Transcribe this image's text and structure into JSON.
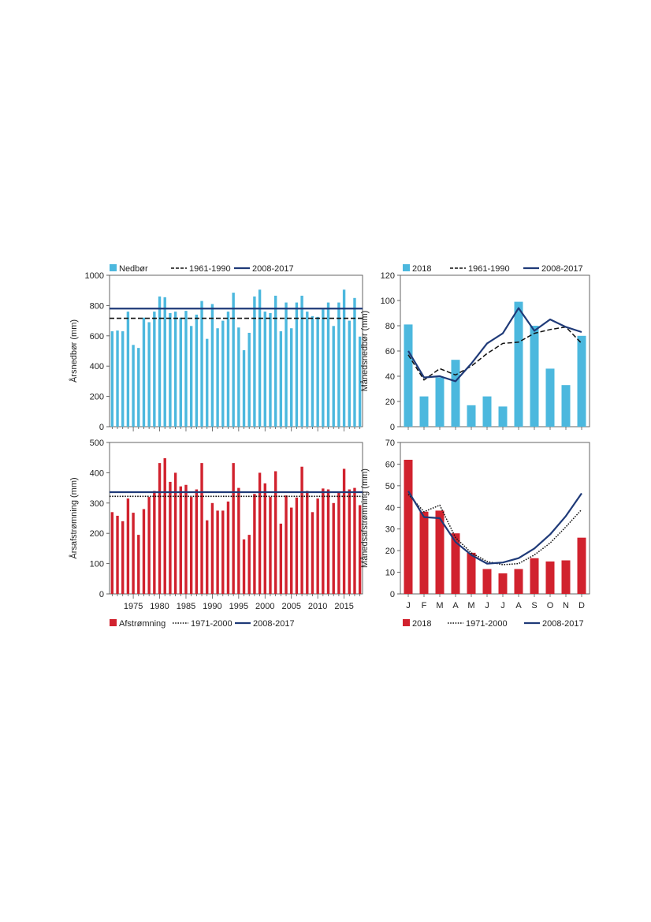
{
  "colors": {
    "precip_bar": "#4cb8de",
    "runoff_bar": "#d1222e",
    "line_recent": "#1f3a78",
    "line_normal": "#111111",
    "frame": "#555555"
  },
  "legends": {
    "precip_annual": [
      {
        "kind": "bar",
        "label": "Nedbør",
        "color_key": "precip_bar"
      },
      {
        "kind": "dashed",
        "label": "1961-1990"
      },
      {
        "kind": "solid",
        "label": "2008-2017"
      }
    ],
    "precip_monthly": [
      {
        "kind": "bar",
        "label": "2018",
        "color_key": "precip_bar"
      },
      {
        "kind": "dashed",
        "label": "1961-1990"
      },
      {
        "kind": "solid",
        "label": "2008-2017"
      }
    ],
    "runoff_annual": [
      {
        "kind": "bar",
        "label": "Afstrømning",
        "color_key": "runoff_bar"
      },
      {
        "kind": "dotted",
        "label": "1971-2000"
      },
      {
        "kind": "solid",
        "label": "2008-2017"
      }
    ],
    "runoff_monthly": [
      {
        "kind": "bar",
        "label": "2018",
        "color_key": "runoff_bar"
      },
      {
        "kind": "dotted",
        "label": "1971-2000"
      },
      {
        "kind": "solid",
        "label": "2008-2017"
      }
    ]
  },
  "chart_data": [
    {
      "id": "precip_annual",
      "type": "bar",
      "ylabel": "Årsnedbør (mm)",
      "ylim": [
        0,
        1000
      ],
      "yticks": [
        0,
        200,
        400,
        600,
        800,
        1000
      ],
      "x_tick_labels_shown": false,
      "categories": [
        1971,
        1972,
        1973,
        1974,
        1975,
        1976,
        1977,
        1978,
        1979,
        1980,
        1981,
        1982,
        1983,
        1984,
        1985,
        1986,
        1987,
        1988,
        1989,
        1990,
        1991,
        1992,
        1993,
        1994,
        1995,
        1996,
        1997,
        1998,
        1999,
        2000,
        2001,
        2002,
        2003,
        2004,
        2005,
        2006,
        2007,
        2008,
        2009,
        2010,
        2011,
        2012,
        2013,
        2014,
        2015,
        2016,
        2017,
        2018
      ],
      "values": [
        630,
        635,
        630,
        760,
        540,
        520,
        720,
        690,
        760,
        860,
        855,
        750,
        760,
        720,
        765,
        665,
        740,
        830,
        580,
        810,
        650,
        700,
        760,
        885,
        655,
        505,
        620,
        860,
        905,
        760,
        750,
        865,
        630,
        820,
        650,
        820,
        865,
        760,
        730,
        725,
        775,
        820,
        665,
        820,
        905,
        700,
        850,
        595
      ],
      "reference_lines": [
        {
          "label": "1961-1990",
          "style": "dashed",
          "value": 716
        },
        {
          "label": "2008-2017",
          "style": "solid",
          "value": 780
        }
      ]
    },
    {
      "id": "precip_monthly",
      "type": "bar",
      "ylabel": "Månedsnedbør (mm)",
      "ylim": [
        0,
        120
      ],
      "yticks": [
        0,
        20,
        40,
        60,
        80,
        100,
        120
      ],
      "x_tick_labels_shown": false,
      "categories": [
        "J",
        "F",
        "M",
        "A",
        "M",
        "J",
        "J",
        "A",
        "S",
        "O",
        "N",
        "D"
      ],
      "series": [
        {
          "name": "2018",
          "style": "bar",
          "values": [
            81,
            24,
            39,
            53,
            17,
            24,
            16,
            99,
            80,
            46,
            33,
            72
          ]
        },
        {
          "name": "1961-1990",
          "style": "dashed",
          "values": [
            57,
            37,
            46,
            41,
            48,
            58,
            66,
            67,
            74,
            77,
            79,
            66
          ]
        },
        {
          "name": "2008-2017",
          "style": "solid",
          "values": [
            60,
            39,
            40,
            36,
            50,
            66,
            74,
            94,
            76,
            85,
            79,
            75
          ]
        }
      ]
    },
    {
      "id": "runoff_annual",
      "type": "bar",
      "ylabel": "Årsafstrømning (mm)",
      "ylim": [
        0,
        500
      ],
      "yticks": [
        0,
        100,
        200,
        300,
        400,
        500
      ],
      "x_tick_labels": [
        "1975",
        "1980",
        "1985",
        "1990",
        "1995",
        "2000",
        "2005",
        "2010",
        "2015"
      ],
      "categories": [
        1971,
        1972,
        1973,
        1974,
        1975,
        1976,
        1977,
        1978,
        1979,
        1980,
        1981,
        1982,
        1983,
        1984,
        1985,
        1986,
        1987,
        1988,
        1989,
        1990,
        1991,
        1992,
        1993,
        1994,
        1995,
        1996,
        1997,
        1998,
        1999,
        2000,
        2001,
        2002,
        2003,
        2004,
        2005,
        2006,
        2007,
        2008,
        2009,
        2010,
        2011,
        2012,
        2013,
        2014,
        2015,
        2016,
        2017,
        2018
      ],
      "values": [
        270,
        258,
        240,
        315,
        268,
        195,
        280,
        320,
        340,
        432,
        448,
        370,
        400,
        355,
        360,
        320,
        345,
        432,
        243,
        300,
        275,
        275,
        305,
        432,
        350,
        180,
        195,
        330,
        400,
        365,
        320,
        405,
        232,
        325,
        285,
        318,
        420,
        340,
        270,
        315,
        348,
        345,
        300,
        335,
        413,
        345,
        350,
        293
      ],
      "reference_lines": [
        {
          "label": "1971-2000",
          "style": "dotted",
          "value": 322
        },
        {
          "label": "2008-2017",
          "style": "solid",
          "value": 336
        }
      ]
    },
    {
      "id": "runoff_monthly",
      "type": "bar",
      "ylabel": "Månedsafstrømning (mm)",
      "ylim": [
        0,
        70
      ],
      "yticks": [
        0,
        10,
        20,
        30,
        40,
        50,
        60,
        70
      ],
      "categories": [
        "J",
        "F",
        "M",
        "A",
        "M",
        "J",
        "J",
        "A",
        "S",
        "O",
        "N",
        "D"
      ],
      "series": [
        {
          "name": "2018",
          "style": "bar",
          "values": [
            62,
            38,
            38.5,
            28,
            19,
            11.5,
            9.5,
            11.5,
            16.5,
            15,
            15.5,
            26
          ]
        },
        {
          "name": "1971-2000",
          "style": "dotted",
          "values": [
            46,
            38,
            41,
            26,
            19,
            15,
            13.5,
            14,
            18,
            23.5,
            31,
            39
          ]
        },
        {
          "name": "2008-2017",
          "style": "solid",
          "values": [
            47.5,
            35.5,
            35,
            24,
            18,
            14,
            14.5,
            16.5,
            21,
            27.5,
            36,
            46.5
          ]
        }
      ]
    }
  ]
}
